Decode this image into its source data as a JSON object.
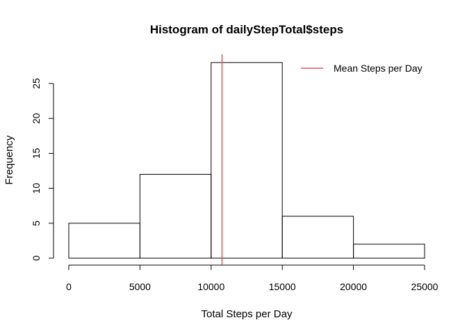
{
  "chart_data": {
    "type": "bar",
    "title": "Histogram of dailyStepTotal$steps",
    "xlabel": "Total Steps per Day",
    "ylabel": "Frequency",
    "bins": [
      {
        "start": 0,
        "end": 5000,
        "count": 5
      },
      {
        "start": 5000,
        "end": 10000,
        "count": 12
      },
      {
        "start": 10000,
        "end": 15000,
        "count": 28
      },
      {
        "start": 15000,
        "end": 20000,
        "count": 6
      },
      {
        "start": 20000,
        "end": 25000,
        "count": 2
      }
    ],
    "xlim": [
      0,
      25000
    ],
    "ylim": [
      0,
      28
    ],
    "x_ticks": [
      0,
      5000,
      10000,
      15000,
      20000,
      25000
    ],
    "y_ticks": [
      0,
      5,
      10,
      15,
      20,
      25
    ],
    "reference_line": {
      "x": 10766,
      "name": "Mean Steps per Day",
      "color": "#e0303c"
    },
    "legend": {
      "position": "top-right",
      "entries": [
        "Mean Steps per Day"
      ]
    },
    "grid": false
  }
}
